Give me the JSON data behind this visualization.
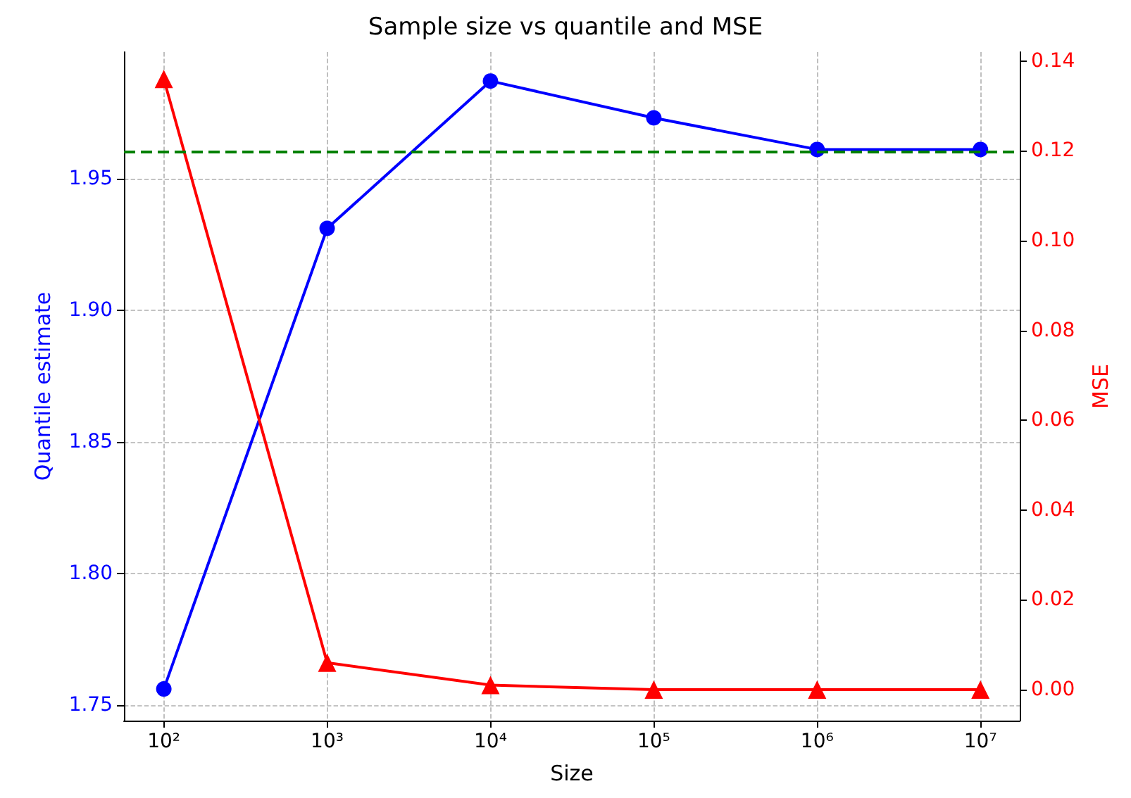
{
  "chart_data": {
    "type": "line",
    "title": "Sample size vs quantile and MSE",
    "xlabel": "Size",
    "ylabel": "Quantile estimate",
    "y2label": "MSE",
    "x": [
      100,
      1000,
      10000,
      100000,
      1000000,
      10000000
    ],
    "series": [
      {
        "name": null,
        "color": "#0000ff",
        "marker": "circle",
        "values": [
          1.756,
          1.931,
          1.987,
          1.973,
          1.961,
          1.961
        ]
      },
      {
        "name": null,
        "color": "#ff0000",
        "marker": "triangle",
        "axis": "y2",
        "values": [
          0.136,
          0.006,
          0.001,
          0,
          0,
          0
        ]
      }
    ],
    "log": "x",
    "xlim": [
      57,
      17400000
    ],
    "xticks": [
      {
        "value": 100,
        "label": "10²"
      },
      {
        "value": 1000,
        "label": "10³"
      },
      {
        "value": 10000,
        "label": "10⁴"
      },
      {
        "value": 100000,
        "label": "10⁵"
      },
      {
        "value": 1000000,
        "label": "10⁶"
      },
      {
        "value": 10000000,
        "label": "10⁷"
      }
    ],
    "ylim": [
      1.744,
      1.998
    ],
    "yticks": [
      {
        "value": 1.75,
        "label": "1.75"
      },
      {
        "value": 1.8,
        "label": "1.80"
      },
      {
        "value": 1.85,
        "label": "1.85"
      },
      {
        "value": 1.9,
        "label": "1.90"
      },
      {
        "value": 1.95,
        "label": "1.95"
      }
    ],
    "y2lim": [
      -0.0069,
      0.142
    ],
    "y2ticks": [
      {
        "value": 0,
        "label": "0.00"
      },
      {
        "value": 0.02,
        "label": "0.02"
      },
      {
        "value": 0.04,
        "label": "0.04"
      },
      {
        "value": 0.06,
        "label": "0.06"
      },
      {
        "value": 0.08,
        "label": "0.08"
      },
      {
        "value": 0.1,
        "label": "0.10"
      },
      {
        "value": 0.12,
        "label": "0.12"
      },
      {
        "value": 0.14,
        "label": "0.14"
      }
    ],
    "ref_lines": [
      {
        "axis": "y",
        "value": 1.96,
        "label": null,
        "color": "#008000",
        "line_style": "dashed"
      }
    ],
    "grid": true,
    "line_style": "solid"
  }
}
